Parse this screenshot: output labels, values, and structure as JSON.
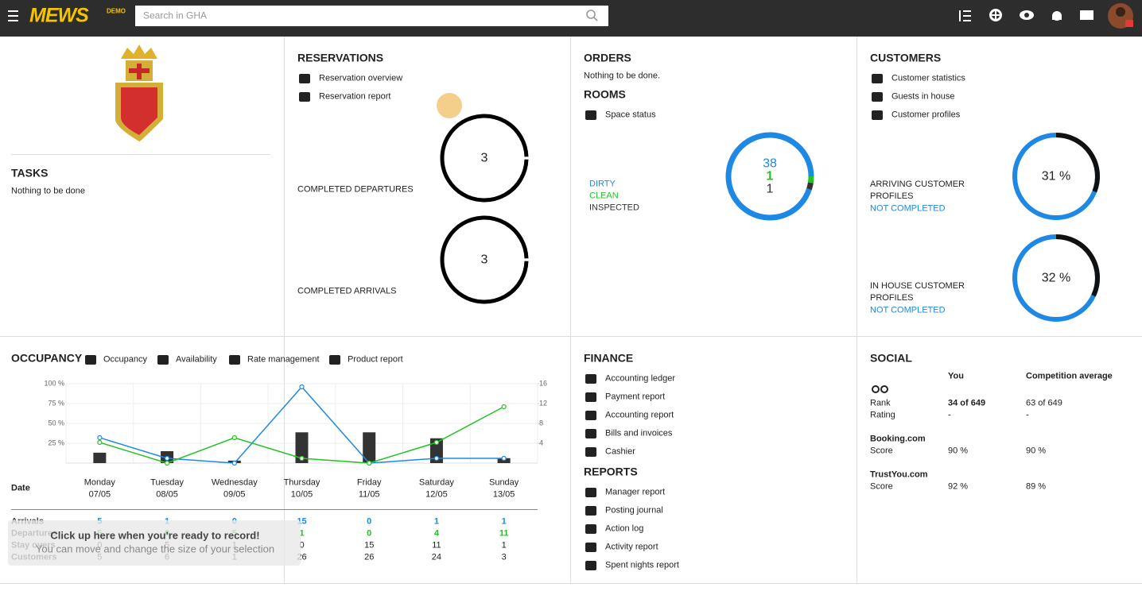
{
  "header": {
    "logo": "MEWS",
    "badge": "DEMO",
    "search_placeholder": "Search in GHA"
  },
  "tasks": {
    "title": "TASKS",
    "text": "Nothing to be done"
  },
  "reservations": {
    "title": "RESERVATIONS",
    "links": [
      "Reservation overview",
      "Reservation report"
    ],
    "gauges": [
      {
        "label": "COMPLETED DEPARTURES",
        "value": 3
      },
      {
        "label": "COMPLETED ARRIVALS",
        "value": 3
      }
    ]
  },
  "orders": {
    "title": "ORDERS",
    "text": "Nothing to be done."
  },
  "rooms": {
    "title": "ROOMS",
    "links": [
      "Space status"
    ],
    "statuses": [
      {
        "label": "DIRTY",
        "value": 38,
        "color": "#1e88e5"
      },
      {
        "label": "CLEAN",
        "value": 1,
        "color": "#22c322"
      },
      {
        "label": "INSPECTED",
        "value": 1,
        "color": "#333333"
      }
    ]
  },
  "customers": {
    "title": "CUSTOMERS",
    "links": [
      "Customer statistics",
      "Guests in house",
      "Customer profiles"
    ],
    "gauges": [
      {
        "label": "ARRIVING CUSTOMER PROFILES",
        "status": "NOT COMPLETED",
        "value": 31,
        "value_label": "31 %"
      },
      {
        "label": "IN HOUSE CUSTOMER PROFILES",
        "status": "NOT COMPLETED",
        "value": 32,
        "value_label": "32 %"
      }
    ]
  },
  "occupancy": {
    "title": "OCCUPANCY",
    "links": [
      "Occupancy",
      "Availability",
      "Rate management",
      "Product report"
    ],
    "chart": {
      "type": "bar-line",
      "days": [
        "Monday",
        "Tuesday",
        "Wednesday",
        "Thursday",
        "Friday",
        "Saturday",
        "Sunday"
      ],
      "dates": [
        "07/05",
        "08/05",
        "09/05",
        "10/05",
        "11/05",
        "12/05",
        "13/05"
      ],
      "ylim": [
        0,
        100
      ],
      "yticks": [
        {
          "value": 25,
          "label": "25 %"
        },
        {
          "value": 50,
          "label": "50 %"
        },
        {
          "value": 75,
          "label": "75 %"
        },
        {
          "value": 100,
          "label": "100 %"
        }
      ],
      "y2lim": [
        0,
        16
      ],
      "y2ticks": [
        4,
        8,
        12,
        16
      ],
      "grid": true,
      "bars": {
        "color": "#333333",
        "axis": "y2",
        "values": [
          2.1,
          2.4,
          0.5,
          6.2,
          6.2,
          5,
          1
        ]
      },
      "series": [
        {
          "color": "#1e88e5",
          "values": [
            32,
            6,
            0,
            96,
            0,
            6,
            6
          ]
        },
        {
          "color": "#22c322",
          "values": [
            26,
            0,
            32,
            6,
            0,
            26,
            71
          ]
        }
      ]
    },
    "table": {
      "header": "Date",
      "rows": [
        {
          "label": "Arrivals",
          "color": "#1e88e5",
          "values": [
            5,
            1,
            0,
            15,
            0,
            1,
            1
          ]
        },
        {
          "label": "Departures",
          "color": "#22c322",
          "values": [
            5,
            0,
            5,
            1,
            0,
            4,
            11
          ]
        },
        {
          "label": "Stay overs",
          "color": "#222222",
          "values": [
            0,
            5,
            1,
            0,
            15,
            11,
            1
          ]
        },
        {
          "label": "Customers",
          "color": "#222222",
          "values": [
            5,
            6,
            1,
            26,
            26,
            24,
            3
          ]
        }
      ]
    }
  },
  "finance": {
    "title": "FINANCE",
    "links": [
      "Accounting ledger",
      "Payment report",
      "Accounting report",
      "Bills and invoices",
      "Cashier"
    ]
  },
  "reports": {
    "title": "REPORTS",
    "links": [
      "Manager report",
      "Posting journal",
      "Action log",
      "Activity report",
      "Spent nights report"
    ]
  },
  "social": {
    "title": "SOCIAL",
    "columns": [
      "You",
      "Competition average"
    ],
    "tripadvisor": [
      {
        "label": "Rank",
        "values": [
          "34 of 649",
          "63 of 649"
        ]
      },
      {
        "label": "Rating",
        "values": [
          "-",
          "-"
        ]
      }
    ],
    "sites": [
      {
        "name": "Booking.com",
        "label": "Score",
        "values": [
          "90 %",
          "90 %"
        ]
      },
      {
        "name": "TrustYou.com",
        "label": "Score",
        "values": [
          "92 %",
          "89 %"
        ]
      }
    ]
  },
  "overlay": {
    "title": "Click up here when you're ready to record!",
    "text": "You can move and change the size of your selection"
  }
}
